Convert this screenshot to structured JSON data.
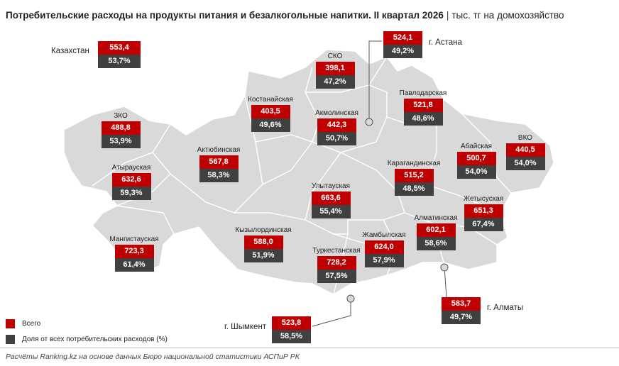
{
  "title": {
    "main": "Потребительские расходы на продукты питания и безалкогольные напитки. II квартал 2026",
    "separator": "|",
    "unit": "тыс. тг на домохозяйство"
  },
  "colors": {
    "total": "#c00000",
    "share": "#404040",
    "map_fill": "#d9d9d9",
    "border": "#ffffff"
  },
  "national": {
    "name": "Казахстан",
    "value": "553,4",
    "share": "53,7%"
  },
  "regions": [
    {
      "name": "ЗКО",
      "value": "488,8",
      "share": "53,9%"
    },
    {
      "name": "Атырауская",
      "value": "632,6",
      "share": "59,3%"
    },
    {
      "name": "Мангистауская",
      "value": "723,3",
      "share": "61,4%"
    },
    {
      "name": "Актюбинская",
      "value": "567,8",
      "share": "58,3%"
    },
    {
      "name": "Костанайская",
      "value": "403,5",
      "share": "49,6%"
    },
    {
      "name": "СКО",
      "value": "398,1",
      "share": "47,2%"
    },
    {
      "name": "Акмолинская",
      "value": "442,3",
      "share": "50,7%"
    },
    {
      "name": "Павлодарская",
      "value": "521,8",
      "share": "48,6%"
    },
    {
      "name": "Кызылординская",
      "value": "588,0",
      "share": "51,9%"
    },
    {
      "name": "Улытауская",
      "value": "663,6",
      "share": "55,4%"
    },
    {
      "name": "Карагандинская",
      "value": "515,2",
      "share": "48,5%"
    },
    {
      "name": "Абайская",
      "value": "500,7",
      "share": "54,0%"
    },
    {
      "name": "ВКО",
      "value": "440,5",
      "share": "54,0%"
    },
    {
      "name": "Жетысуская",
      "value": "651,3",
      "share": "67,4%"
    },
    {
      "name": "Алматинская",
      "value": "602,1",
      "share": "58,6%"
    },
    {
      "name": "Жамбылская",
      "value": "624,0",
      "share": "57,9%"
    },
    {
      "name": "Туркестанская",
      "value": "728,2",
      "share": "57,5%"
    }
  ],
  "cities": [
    {
      "name": "г. Астана",
      "value": "524,1",
      "share": "49,2%"
    },
    {
      "name": "г. Шымкент",
      "value": "523,8",
      "share": "58,5%"
    },
    {
      "name": "г. Алматы",
      "value": "583,7",
      "share": "49,7%"
    }
  ],
  "legend": [
    {
      "label": "Всего",
      "color": "#c00000"
    },
    {
      "label": "Доля от всех потребительских расходов (%)",
      "color": "#404040"
    }
  ],
  "footer": "Расчёты Ranking.kz на основе данных Бюро национальной статистики АСПиР РК"
}
